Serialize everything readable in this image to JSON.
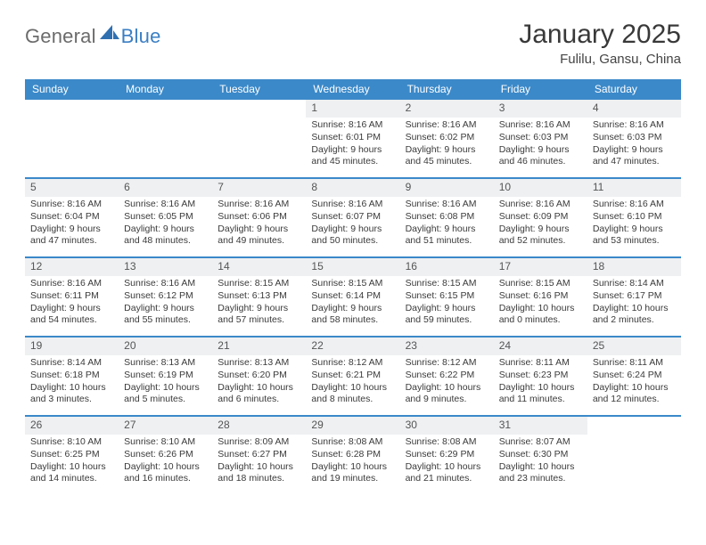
{
  "brand": {
    "part1": "General",
    "part2": "Blue"
  },
  "title": "January 2025",
  "location": "Fulilu, Gansu, China",
  "colors": {
    "header_bg": "#3b89c9",
    "header_text": "#ffffff",
    "daynum_bg": "#eef0f2",
    "body_text": "#3a3a3a",
    "title_text": "#393939",
    "brand_gray": "#6b6b6b",
    "brand_blue": "#3b7fc4"
  },
  "layout": {
    "grid_cols": 7,
    "title_fontsize": 30,
    "location_fontsize": 15,
    "weekday_fontsize": 12,
    "body_fontsize": 10.5
  },
  "weekdays": [
    "Sunday",
    "Monday",
    "Tuesday",
    "Wednesday",
    "Thursday",
    "Friday",
    "Saturday"
  ],
  "weeks": [
    [
      {
        "n": "",
        "sr": "",
        "ss": "",
        "dl1": "",
        "dl2": ""
      },
      {
        "n": "",
        "sr": "",
        "ss": "",
        "dl1": "",
        "dl2": ""
      },
      {
        "n": "",
        "sr": "",
        "ss": "",
        "dl1": "",
        "dl2": ""
      },
      {
        "n": "1",
        "sr": "Sunrise: 8:16 AM",
        "ss": "Sunset: 6:01 PM",
        "dl1": "Daylight: 9 hours",
        "dl2": "and 45 minutes."
      },
      {
        "n": "2",
        "sr": "Sunrise: 8:16 AM",
        "ss": "Sunset: 6:02 PM",
        "dl1": "Daylight: 9 hours",
        "dl2": "and 45 minutes."
      },
      {
        "n": "3",
        "sr": "Sunrise: 8:16 AM",
        "ss": "Sunset: 6:03 PM",
        "dl1": "Daylight: 9 hours",
        "dl2": "and 46 minutes."
      },
      {
        "n": "4",
        "sr": "Sunrise: 8:16 AM",
        "ss": "Sunset: 6:03 PM",
        "dl1": "Daylight: 9 hours",
        "dl2": "and 47 minutes."
      }
    ],
    [
      {
        "n": "5",
        "sr": "Sunrise: 8:16 AM",
        "ss": "Sunset: 6:04 PM",
        "dl1": "Daylight: 9 hours",
        "dl2": "and 47 minutes."
      },
      {
        "n": "6",
        "sr": "Sunrise: 8:16 AM",
        "ss": "Sunset: 6:05 PM",
        "dl1": "Daylight: 9 hours",
        "dl2": "and 48 minutes."
      },
      {
        "n": "7",
        "sr": "Sunrise: 8:16 AM",
        "ss": "Sunset: 6:06 PM",
        "dl1": "Daylight: 9 hours",
        "dl2": "and 49 minutes."
      },
      {
        "n": "8",
        "sr": "Sunrise: 8:16 AM",
        "ss": "Sunset: 6:07 PM",
        "dl1": "Daylight: 9 hours",
        "dl2": "and 50 minutes."
      },
      {
        "n": "9",
        "sr": "Sunrise: 8:16 AM",
        "ss": "Sunset: 6:08 PM",
        "dl1": "Daylight: 9 hours",
        "dl2": "and 51 minutes."
      },
      {
        "n": "10",
        "sr": "Sunrise: 8:16 AM",
        "ss": "Sunset: 6:09 PM",
        "dl1": "Daylight: 9 hours",
        "dl2": "and 52 minutes."
      },
      {
        "n": "11",
        "sr": "Sunrise: 8:16 AM",
        "ss": "Sunset: 6:10 PM",
        "dl1": "Daylight: 9 hours",
        "dl2": "and 53 minutes."
      }
    ],
    [
      {
        "n": "12",
        "sr": "Sunrise: 8:16 AM",
        "ss": "Sunset: 6:11 PM",
        "dl1": "Daylight: 9 hours",
        "dl2": "and 54 minutes."
      },
      {
        "n": "13",
        "sr": "Sunrise: 8:16 AM",
        "ss": "Sunset: 6:12 PM",
        "dl1": "Daylight: 9 hours",
        "dl2": "and 55 minutes."
      },
      {
        "n": "14",
        "sr": "Sunrise: 8:15 AM",
        "ss": "Sunset: 6:13 PM",
        "dl1": "Daylight: 9 hours",
        "dl2": "and 57 minutes."
      },
      {
        "n": "15",
        "sr": "Sunrise: 8:15 AM",
        "ss": "Sunset: 6:14 PM",
        "dl1": "Daylight: 9 hours",
        "dl2": "and 58 minutes."
      },
      {
        "n": "16",
        "sr": "Sunrise: 8:15 AM",
        "ss": "Sunset: 6:15 PM",
        "dl1": "Daylight: 9 hours",
        "dl2": "and 59 minutes."
      },
      {
        "n": "17",
        "sr": "Sunrise: 8:15 AM",
        "ss": "Sunset: 6:16 PM",
        "dl1": "Daylight: 10 hours",
        "dl2": "and 0 minutes."
      },
      {
        "n": "18",
        "sr": "Sunrise: 8:14 AM",
        "ss": "Sunset: 6:17 PM",
        "dl1": "Daylight: 10 hours",
        "dl2": "and 2 minutes."
      }
    ],
    [
      {
        "n": "19",
        "sr": "Sunrise: 8:14 AM",
        "ss": "Sunset: 6:18 PM",
        "dl1": "Daylight: 10 hours",
        "dl2": "and 3 minutes."
      },
      {
        "n": "20",
        "sr": "Sunrise: 8:13 AM",
        "ss": "Sunset: 6:19 PM",
        "dl1": "Daylight: 10 hours",
        "dl2": "and 5 minutes."
      },
      {
        "n": "21",
        "sr": "Sunrise: 8:13 AM",
        "ss": "Sunset: 6:20 PM",
        "dl1": "Daylight: 10 hours",
        "dl2": "and 6 minutes."
      },
      {
        "n": "22",
        "sr": "Sunrise: 8:12 AM",
        "ss": "Sunset: 6:21 PM",
        "dl1": "Daylight: 10 hours",
        "dl2": "and 8 minutes."
      },
      {
        "n": "23",
        "sr": "Sunrise: 8:12 AM",
        "ss": "Sunset: 6:22 PM",
        "dl1": "Daylight: 10 hours",
        "dl2": "and 9 minutes."
      },
      {
        "n": "24",
        "sr": "Sunrise: 8:11 AM",
        "ss": "Sunset: 6:23 PM",
        "dl1": "Daylight: 10 hours",
        "dl2": "and 11 minutes."
      },
      {
        "n": "25",
        "sr": "Sunrise: 8:11 AM",
        "ss": "Sunset: 6:24 PM",
        "dl1": "Daylight: 10 hours",
        "dl2": "and 12 minutes."
      }
    ],
    [
      {
        "n": "26",
        "sr": "Sunrise: 8:10 AM",
        "ss": "Sunset: 6:25 PM",
        "dl1": "Daylight: 10 hours",
        "dl2": "and 14 minutes."
      },
      {
        "n": "27",
        "sr": "Sunrise: 8:10 AM",
        "ss": "Sunset: 6:26 PM",
        "dl1": "Daylight: 10 hours",
        "dl2": "and 16 minutes."
      },
      {
        "n": "28",
        "sr": "Sunrise: 8:09 AM",
        "ss": "Sunset: 6:27 PM",
        "dl1": "Daylight: 10 hours",
        "dl2": "and 18 minutes."
      },
      {
        "n": "29",
        "sr": "Sunrise: 8:08 AM",
        "ss": "Sunset: 6:28 PM",
        "dl1": "Daylight: 10 hours",
        "dl2": "and 19 minutes."
      },
      {
        "n": "30",
        "sr": "Sunrise: 8:08 AM",
        "ss": "Sunset: 6:29 PM",
        "dl1": "Daylight: 10 hours",
        "dl2": "and 21 minutes."
      },
      {
        "n": "31",
        "sr": "Sunrise: 8:07 AM",
        "ss": "Sunset: 6:30 PM",
        "dl1": "Daylight: 10 hours",
        "dl2": "and 23 minutes."
      },
      {
        "n": "",
        "sr": "",
        "ss": "",
        "dl1": "",
        "dl2": ""
      }
    ]
  ]
}
